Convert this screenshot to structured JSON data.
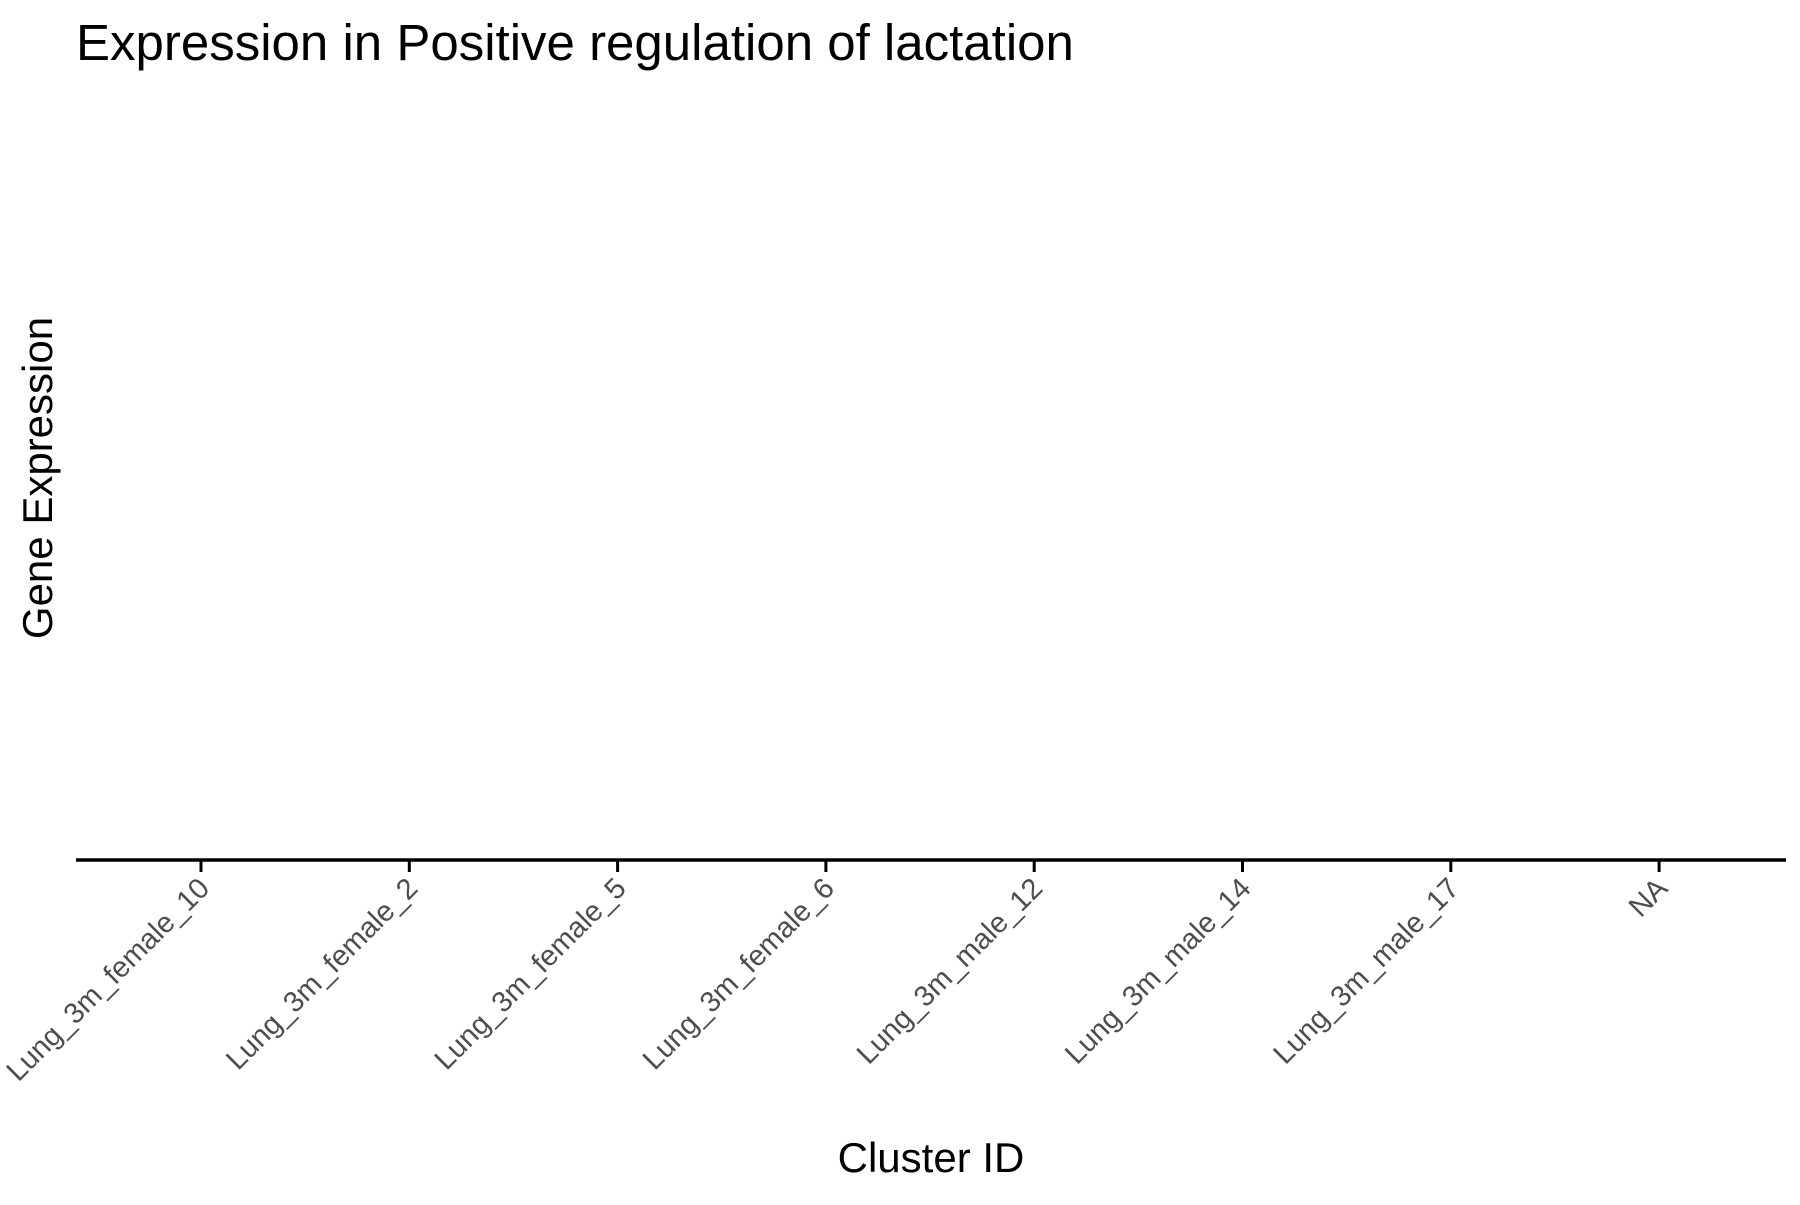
{
  "chart_data": {
    "type": "bar",
    "title": "Expression in Positive regulation of lactation",
    "xlabel": "Cluster ID",
    "ylabel": "Gene Expression",
    "categories": [
      "Lung_3m_female_10",
      "Lung_3m_female_2",
      "Lung_3m_female_5",
      "Lung_3m_female_6",
      "Lung_3m_male_12",
      "Lung_3m_male_14",
      "Lung_3m_male_17",
      "NA"
    ],
    "values": [
      null,
      null,
      null,
      null,
      null,
      null,
      null,
      null
    ],
    "grid": false,
    "legend": "none",
    "colors": {
      "text": "#000000",
      "tick_label": "#4d4d4d",
      "axis": "#000000"
    }
  }
}
